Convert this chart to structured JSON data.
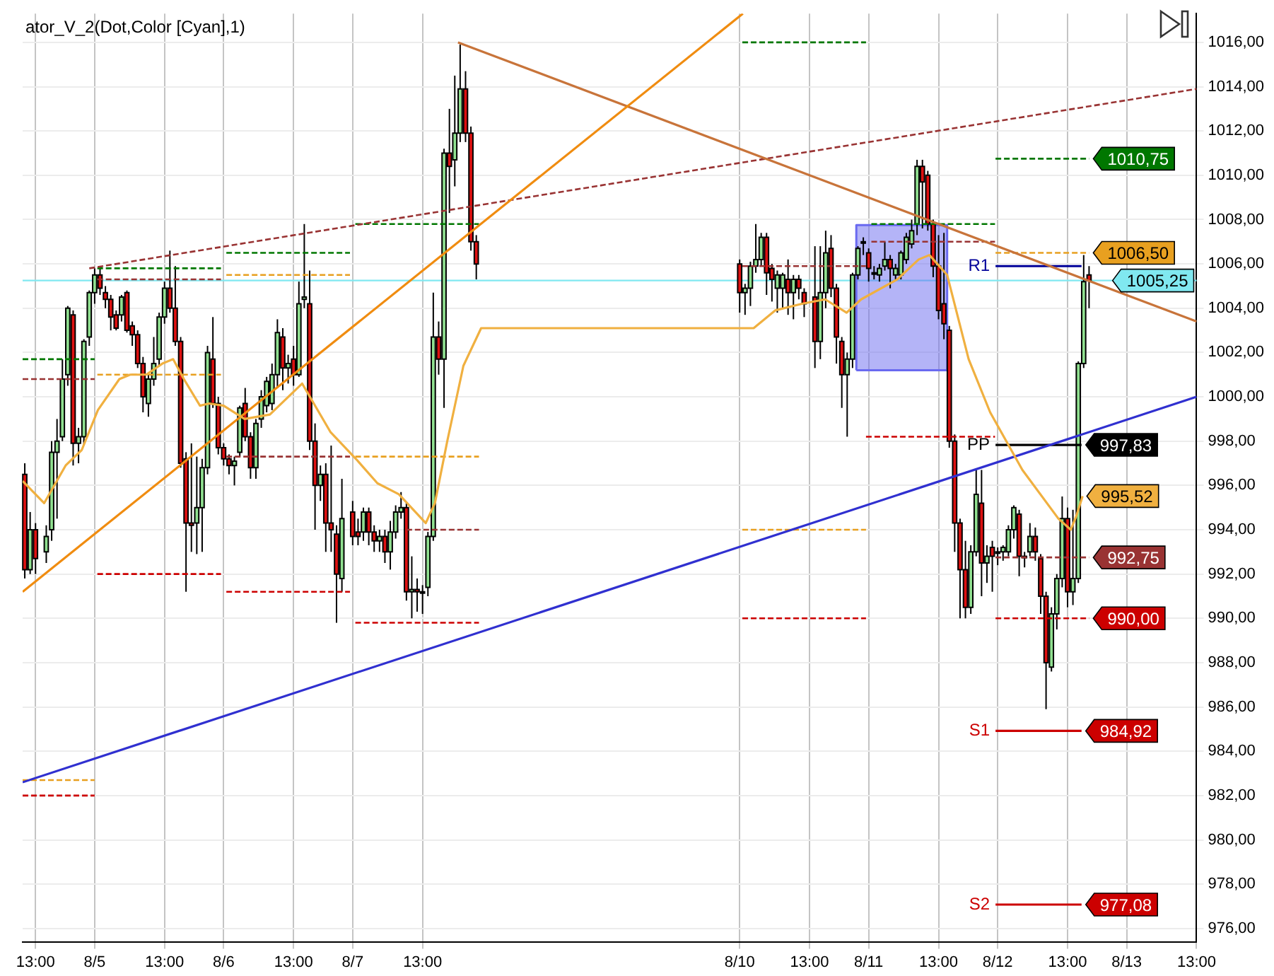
{
  "chart_data": {
    "type": "candlestick",
    "title": "ator_V_2(Dot,Color [Cyan],1)",
    "x": [
      "--08-04T11:00",
      "--08-04T12:00",
      "--08-04T13:00",
      "--08-04T15:00",
      "--08-04T16:00",
      "--08-04T17:00",
      "--08-04T18:00",
      "--08-04T19:00",
      "--08-04T20:00",
      "--08-04T21:00",
      "--08-04T22:00",
      "--08-04T23:00",
      "--08-05T00:00",
      "--08-05T01:00",
      "--08-05T02:00",
      "--08-05T03:00",
      "--08-05T04:00",
      "--08-05T05:00",
      "--08-05T06:00",
      "--08-05T07:00",
      "--08-05T08:00",
      "--08-05T09:00",
      "--08-05T10:00",
      "--08-05T11:00",
      "--08-05T12:00",
      "--08-05T13:00",
      "--08-05T14:00",
      "--08-05T15:00",
      "--08-05T16:00",
      "--08-05T17:00",
      "--08-05T18:00",
      "--08-05T19:00",
      "--08-05T20:00",
      "--08-05T21:00",
      "--08-05T22:00",
      "--08-05T23:00",
      "--08-06T00:00",
      "--08-06T01:00",
      "--08-06T02:00",
      "--08-06T03:00",
      "--08-06T04:00",
      "--08-06T05:00",
      "--08-06T06:00",
      "--08-06T07:00",
      "--08-06T08:00",
      "--08-06T09:00",
      "--08-06T10:00",
      "--08-06T11:00",
      "--08-06T12:00",
      "--08-06T13:00",
      "--08-06T14:00",
      "--08-06T15:00",
      "--08-06T16:00",
      "--08-06T17:00",
      "--08-06T18:00",
      "--08-06T19:00",
      "--08-06T20:00",
      "--08-06T21:00",
      "--08-06T22:00",
      "--08-07T00:00",
      "--08-07T01:00",
      "--08-07T02:00",
      "--08-07T03:00",
      "--08-07T04:00",
      "--08-07T05:00",
      "--08-07T06:00",
      "--08-07T07:00",
      "--08-07T08:00",
      "--08-07T09:00",
      "--08-07T10:00",
      "--08-07T11:00",
      "--08-07T12:00",
      "--08-07T13:00",
      "--08-07T14:00",
      "--08-07T15:00",
      "--08-07T16:00",
      "--08-07T17:00",
      "--08-07T18:00",
      "--08-07T19:00",
      "--08-07T20:00",
      "--08-07T21:00",
      "--08-07T22:00",
      "--08-07T23:00",
      "--08-10T00:00",
      "--08-10T01:00",
      "--08-10T02:00",
      "--08-10T03:00",
      "--08-10T04:00",
      "--08-10T05:00",
      "--08-10T06:00",
      "--08-10T07:00",
      "--08-10T08:00",
      "--08-10T09:00",
      "--08-10T10:00",
      "--08-10T11:00",
      "--08-10T12:00",
      "--08-10T14:00",
      "--08-10T15:00",
      "--08-10T16:00",
      "--08-10T17:00",
      "--08-10T18:00",
      "--08-10T19:00",
      "--08-10T20:00",
      "--08-10T21:00",
      "--08-10T22:00",
      "--08-10T23:00",
      "--08-11T00:00",
      "--08-11T01:00",
      "--08-11T02:00",
      "--08-11T03:00",
      "--08-11T04:00",
      "--08-11T05:00",
      "--08-11T06:00",
      "--08-11T07:00",
      "--08-11T08:00",
      "--08-11T09:00",
      "--08-11T10:00",
      "--08-11T11:00",
      "--08-11T12:00",
      "--08-11T13:00",
      "--08-11T14:00",
      "--08-11T15:00",
      "--08-11T16:00",
      "--08-11T17:00",
      "--08-11T18:00",
      "--08-11T19:00",
      "--08-11T20:00",
      "--08-11T21:00",
      "--08-11T22:00",
      "--08-11T23:00",
      "--08-12T00:00",
      "--08-12T01:00",
      "--08-12T02:00",
      "--08-12T03:00",
      "--08-12T04:00",
      "--08-12T05:00",
      "--08-12T06:00",
      "--08-12T07:00",
      "--08-12T08:00",
      "--08-12T09:00",
      "--08-12T10:00",
      "--08-12T11:00",
      "--08-12T12:00",
      "--08-12T13:00",
      "--08-12T14:00",
      "--08-12T15:00",
      "--08-12T16:00",
      "--08-12T17:00"
    ],
    "ohlc": [
      [
        996.5,
        997.0,
        991.8,
        992.2
      ],
      [
        992.2,
        994.8,
        992.0,
        994.0
      ],
      [
        994.0,
        994.3,
        992.0,
        992.7
      ],
      [
        993.0,
        994.2,
        992.5,
        993.7
      ],
      [
        994.0,
        998.0,
        993.5,
        997.5
      ],
      [
        997.5,
        999.0,
        994.5,
        998.0
      ],
      [
        998.2,
        1001.7,
        998.0,
        1000.8
      ],
      [
        1001.0,
        1004.1,
        1000.5,
        1004.0
      ],
      [
        1003.7,
        1003.9,
        996.9,
        997.9
      ],
      [
        997.9,
        998.6,
        997.0,
        998.2
      ],
      [
        998.2,
        1002.6,
        997.8,
        1002.5
      ],
      [
        1002.7,
        1004.8,
        1002.3,
        1004.7
      ],
      [
        1004.7,
        1005.8,
        1004.2,
        1005.5
      ],
      [
        1005.5,
        1005.8,
        1004.6,
        1004.9
      ],
      [
        1004.7,
        1005.0,
        1004.0,
        1004.4
      ],
      [
        1004.4,
        1004.6,
        1003.0,
        1003.6
      ],
      [
        1003.7,
        1003.9,
        1003.0,
        1003.1
      ],
      [
        1003.7,
        1004.6,
        1003.4,
        1004.5
      ],
      [
        1004.7,
        1004.8,
        1002.9,
        1003.0
      ],
      [
        1003.2,
        1003.4,
        1002.3,
        1002.8
      ],
      [
        1002.8,
        1003.0,
        1001.3,
        1001.5
      ],
      [
        1001.5,
        1001.8,
        999.3,
        1000.0
      ],
      [
        999.7,
        1001.0,
        999.1,
        1000.8
      ],
      [
        1000.8,
        1002.7,
        1000.5,
        1001.5
      ],
      [
        1001.7,
        1003.8,
        1001.4,
        1003.6
      ],
      [
        1003.6,
        1005.2,
        1003.3,
        1004.9
      ],
      [
        1004.9,
        1006.6,
        1003.8,
        1004.0
      ],
      [
        1004.0,
        1005.9,
        1002.3,
        1002.5
      ],
      [
        1002.5,
        1002.7,
        996.8,
        997.0
      ],
      [
        997.2,
        997.5,
        991.2,
        994.3
      ],
      [
        994.3,
        997.9,
        993.0,
        994.2
      ],
      [
        994.3,
        997.3,
        992.9,
        995.0
      ],
      [
        995.0,
        997.2,
        993.0,
        996.8
      ],
      [
        996.8,
        1002.3,
        996.5,
        1002.0
      ],
      [
        1001.7,
        1003.6,
        999.5,
        999.7
      ],
      [
        999.7,
        1000.0,
        997.4,
        997.7
      ],
      [
        997.7,
        997.9,
        996.9,
        997.2
      ],
      [
        997.2,
        997.4,
        996.5,
        996.9
      ],
      [
        996.9,
        997.3,
        996.0,
        997.1
      ],
      [
        997.5,
        999.6,
        997.3,
        999.5
      ],
      [
        999.7,
        1000.4,
        998.0,
        998.2
      ],
      [
        998.2,
        998.4,
        996.3,
        996.8
      ],
      [
        996.8,
        999.0,
        996.3,
        998.8
      ],
      [
        999.0,
        1000.3,
        998.6,
        1000.0
      ],
      [
        999.6,
        1000.9,
        999.3,
        1000.7
      ],
      [
        999.7,
        1001.5,
        999.4,
        1001.0
      ],
      [
        1001.0,
        1003.5,
        1000.4,
        1002.9
      ],
      [
        1002.7,
        1003.1,
        1000.3,
        1001.3
      ],
      [
        1001.3,
        1001.9,
        1000.6,
        1001.5
      ],
      [
        1001.7,
        1002.3,
        1000.5,
        1001.0
      ],
      [
        1001.0,
        1005.2,
        1000.9,
        1004.2
      ],
      [
        1004.4,
        1007.8,
        1004.0,
        1004.5
      ],
      [
        1004.2,
        1005.7,
        997.6,
        998.0
      ],
      [
        998.0,
        998.8,
        994.0,
        996.0
      ],
      [
        996.0,
        996.9,
        995.3,
        996.5
      ],
      [
        996.5,
        997.0,
        993.0,
        994.3
      ],
      [
        994.3,
        997.8,
        993.0,
        994.0
      ],
      [
        993.8,
        994.2,
        989.8,
        992.0
      ],
      [
        991.8,
        996.3,
        991.2,
        994.5
      ],
      [
        994.8,
        995.3,
        993.3,
        993.7
      ],
      [
        993.9,
        994.5,
        993.3,
        993.7
      ],
      [
        993.9,
        995.0,
        993.5,
        994.8
      ],
      [
        994.8,
        995.0,
        993.3,
        993.9
      ],
      [
        993.9,
        994.2,
        993.0,
        993.5
      ],
      [
        993.5,
        994.0,
        993.0,
        993.7
      ],
      [
        993.7,
        994.0,
        992.5,
        993.0
      ],
      [
        993.0,
        994.4,
        992.2,
        993.9
      ],
      [
        993.9,
        995.1,
        993.6,
        994.8
      ],
      [
        994.8,
        995.7,
        994.5,
        995.0
      ],
      [
        995.0,
        995.2,
        990.8,
        991.2
      ],
      [
        991.2,
        992.8,
        990.0,
        991.3
      ],
      [
        991.3,
        991.8,
        990.3,
        991.2
      ],
      [
        991.2,
        991.5,
        990.2,
        991.2
      ],
      [
        991.4,
        993.9,
        991.0,
        993.7
      ],
      [
        993.7,
        1004.7,
        993.5,
        1002.7
      ],
      [
        1002.7,
        1003.4,
        1001.0,
        1001.7
      ],
      [
        1001.7,
        1011.2,
        999.5,
        1011.0
      ],
      [
        1011.0,
        1013.0,
        1008.3,
        1010.4
      ],
      [
        1010.7,
        1014.5,
        1009.5,
        1011.9
      ],
      [
        1011.9,
        1015.9,
        1011.5,
        1013.9
      ],
      [
        1013.9,
        1014.7,
        1011.5,
        1011.9
      ],
      [
        1011.9,
        1012.2,
        1006.6,
        1007.0
      ],
      [
        1007.0,
        1007.3,
        1005.3,
        1006.0
      ],
      [
        1006.0,
        1006.2,
        1003.8,
        1004.7
      ],
      [
        1004.7,
        1005.1,
        1003.7,
        1004.9
      ],
      [
        1004.9,
        1006.1,
        1004.1,
        1005.9
      ],
      [
        1005.9,
        1007.8,
        1005.6,
        1006.2
      ],
      [
        1006.2,
        1007.4,
        1005.9,
        1007.2
      ],
      [
        1007.2,
        1007.4,
        1004.6,
        1005.6
      ],
      [
        1005.8,
        1006.0,
        1004.3,
        1005.3
      ],
      [
        1004.9,
        1005.7,
        1003.8,
        1005.5
      ],
      [
        1004.9,
        1005.6,
        1004.0,
        1005.5
      ],
      [
        1005.3,
        1006.2,
        1003.7,
        1004.7
      ],
      [
        1004.7,
        1005.5,
        1003.5,
        1005.3
      ],
      [
        1005.3,
        1005.5,
        1004.4,
        1004.9
      ],
      [
        1004.7,
        1004.9,
        1003.6,
        1004.2
      ],
      [
        1004.5,
        1006.8,
        1001.3,
        1002.5
      ],
      [
        1002.5,
        1006.8,
        1001.7,
        1004.7
      ],
      [
        1004.7,
        1007.5,
        1004.0,
        1006.5
      ],
      [
        1006.7,
        1007.3,
        1004.5,
        1004.9
      ],
      [
        1004.9,
        1005.1,
        1001.5,
        1002.7
      ],
      [
        1002.5,
        1002.7,
        999.5,
        1001.0
      ],
      [
        1001.0,
        1002.0,
        998.2,
        1001.7
      ],
      [
        1001.7,
        1005.6,
        1001.3,
        1005.5
      ],
      [
        1005.5,
        1006.8,
        1005.3,
        1006.7
      ],
      [
        1007.0,
        1007.2,
        1006.4,
        1007.0
      ],
      [
        1006.5,
        1006.7,
        1005.2,
        1005.8
      ],
      [
        1005.6,
        1005.9,
        1005.3,
        1005.6
      ],
      [
        1005.5,
        1006.0,
        1005.2,
        1005.8
      ],
      [
        1005.9,
        1007.0,
        1005.7,
        1006.2
      ],
      [
        1006.2,
        1006.4,
        1004.9,
        1005.8
      ],
      [
        1005.5,
        1006.0,
        1005.3,
        1005.8
      ],
      [
        1005.5,
        1006.6,
        1005.3,
        1006.5
      ],
      [
        1006.2,
        1007.4,
        1006.0,
        1007.2
      ],
      [
        1006.9,
        1008.0,
        1006.7,
        1007.5
      ],
      [
        1007.8,
        1010.7,
        1007.3,
        1010.4
      ],
      [
        1010.4,
        1010.7,
        1007.6,
        1009.7
      ],
      [
        1010.0,
        1010.2,
        1007.5,
        1007.8
      ],
      [
        1007.8,
        1008.0,
        1005.4,
        1005.9
      ],
      [
        1005.9,
        1007.3,
        1003.5,
        1003.9
      ],
      [
        1004.2,
        1007.4,
        1002.6,
        1003.3
      ],
      [
        1003.0,
        1003.2,
        997.7,
        998.0
      ],
      [
        998.0,
        998.3,
        993.0,
        994.3
      ],
      [
        994.3,
        994.5,
        990.0,
        992.2
      ],
      [
        992.2,
        993.5,
        990.0,
        990.5
      ],
      [
        990.5,
        993.3,
        990.2,
        993.0
      ],
      [
        993.0,
        996.7,
        992.8,
        995.6
      ],
      [
        995.2,
        996.7,
        991.0,
        992.5
      ],
      [
        992.5,
        993.3,
        991.6,
        992.8
      ],
      [
        993.2,
        993.5,
        991.2,
        992.8
      ],
      [
        993.0,
        993.2,
        992.4,
        993.0
      ],
      [
        993.0,
        993.3,
        992.6,
        993.2
      ],
      [
        993.0,
        994.2,
        992.8,
        994.0
      ],
      [
        994.0,
        995.1,
        993.6,
        995.0
      ],
      [
        994.7,
        994.9,
        991.9,
        992.8
      ],
      [
        992.8,
        993.0,
        992.3,
        992.8
      ],
      [
        993.0,
        994.3,
        992.8,
        993.7
      ],
      [
        993.7,
        994.1,
        992.6,
        993.0
      ],
      [
        992.7,
        992.9,
        990.2,
        991.0
      ],
      [
        991.0,
        991.2,
        985.9,
        988.0
      ],
      [
        987.8,
        990.5,
        987.6,
        990.2
      ],
      [
        990.2,
        992.0,
        989.5,
        991.8
      ],
      [
        991.8,
        995.5,
        991.4,
        994.5
      ],
      [
        994.5,
        995.0,
        990.5,
        991.2
      ],
      [
        991.2,
        994.9,
        990.6,
        991.8
      ],
      [
        991.8,
        1001.6,
        991.6,
        1001.5
      ],
      [
        1001.5,
        1006.4,
        1001.3,
        1005.2
      ],
      [
        1005.5,
        1005.9,
        1004.0,
        1005.25
      ]
    ],
    "colors": [
      "#dd1111",
      "#90e090",
      "#dd1111",
      "#90e090",
      "#90e090",
      "#90e090",
      "#90e090",
      "#90e090",
      "#dd1111",
      "#90e090",
      "#90e090",
      "#90e090",
      "#90e090",
      "#dd1111",
      "#dd1111",
      "#dd1111",
      "#dd1111",
      "#90e090",
      "#dd1111",
      "#dd1111",
      "#dd1111",
      "#dd1111",
      "#90e090",
      "#90e090",
      "#90e090",
      "#90e090",
      "#dd1111",
      "#dd1111",
      "#dd1111",
      "#dd1111",
      "#dd1111",
      "#90e090",
      "#90e090",
      "#90e090",
      "#dd1111",
      "#dd1111",
      "#dd1111",
      "#dd1111",
      "#90e090",
      "#90e090",
      "#dd1111",
      "#dd1111",
      "#90e090",
      "#90e090",
      "#90e090",
      "#90e090",
      "#90e090",
      "#dd1111",
      "#90e090",
      "#dd1111",
      "#90e090",
      "#90e090",
      "#dd1111",
      "#dd1111",
      "#90e090",
      "#dd1111",
      "#dd1111",
      "#dd1111",
      "#90e090",
      "#dd1111",
      "#dd1111",
      "#90e090",
      "#dd1111",
      "#dd1111",
      "#90e090",
      "#dd1111",
      "#90e090",
      "#90e090",
      "#90e090",
      "#dd1111",
      "#90e090",
      "#dd1111",
      "#90e090",
      "#90e090",
      "#90e090",
      "#dd1111",
      "#90e090",
      "#dd1111",
      "#90e090",
      "#90e090",
      "#dd1111",
      "#dd1111",
      "#dd1111",
      "#dd1111",
      "#90e090",
      "#90e090",
      "#90e090",
      "#90e090",
      "#dd1111",
      "#dd1111",
      "#90e090",
      "#90e090",
      "#dd1111",
      "#90e090",
      "#dd1111",
      "#dd1111",
      "#dd1111",
      "#90e090",
      "#90e090",
      "#dd1111",
      "#dd1111",
      "#dd1111",
      "#90e090",
      "#90e090",
      "#90e090",
      "#90e090",
      "#dd1111",
      "#90e090",
      "#90e090",
      "#90e090",
      "#dd1111",
      "#90e090",
      "#90e090",
      "#90e090",
      "#90e090",
      "#90e090",
      "#dd1111",
      "#dd1111",
      "#dd1111",
      "#dd1111",
      "#dd1111",
      "#dd1111",
      "#dd1111",
      "#dd1111",
      "#dd1111",
      "#90e090",
      "#90e090",
      "#dd1111",
      "#90e090",
      "#dd1111",
      "#90e090",
      "#90e090",
      "#90e090",
      "#90e090",
      "#dd1111",
      "#90e090",
      "#90e090",
      "#dd1111",
      "#dd1111",
      "#dd1111",
      "#90e090",
      "#90e090",
      "#90e090",
      "#dd1111",
      "#90e090",
      "#90e090",
      "#90e090",
      "#dd1111"
    ],
    "xlim": [
      "--08-04T10:36",
      "--08-13T13:00"
    ],
    "xticks": [
      {
        "value": "--08-04T13:00",
        "label": "13:00"
      },
      {
        "value": "--08-05",
        "label": "8/5"
      },
      {
        "value": "--08-05T13:00",
        "label": "13:00"
      },
      {
        "value": "--08-06",
        "label": "8/6"
      },
      {
        "value": "--08-06T13:00",
        "label": "13:00"
      },
      {
        "value": "--08-07",
        "label": "8/7"
      },
      {
        "value": "--08-07T13:00",
        "label": "13:00"
      },
      {
        "value": "--08-10",
        "label": "8/10"
      },
      {
        "value": "--08-10T13:00",
        "label": "13:00"
      },
      {
        "value": "--08-11",
        "label": "8/11"
      },
      {
        "value": "--08-11T13:00",
        "label": "13:00"
      },
      {
        "value": "--08-12",
        "label": "8/12"
      },
      {
        "value": "--08-12T13:00",
        "label": "13:00"
      },
      {
        "value": "--08-13",
        "label": "8/13"
      },
      {
        "value": "--08-13T13:00",
        "label": "13:00"
      }
    ],
    "ylim": [
      975.4,
      1017.3
    ],
    "yticks": [
      {
        "value": 976,
        "label": "976,00"
      },
      {
        "value": 978,
        "label": "978,00"
      },
      {
        "value": 980,
        "label": "980,00"
      },
      {
        "value": 982,
        "label": "982,00"
      },
      {
        "value": 984,
        "label": "984,00"
      },
      {
        "value": 986,
        "label": "986,00"
      },
      {
        "value": 988,
        "label": "988,00"
      },
      {
        "value": 990,
        "label": "990,00"
      },
      {
        "value": 992,
        "label": "992,00"
      },
      {
        "value": 994,
        "label": "994,00"
      },
      {
        "value": 996,
        "label": "996,00"
      },
      {
        "value": 998,
        "label": "998,00"
      },
      {
        "value": 1000,
        "label": "1000,00"
      },
      {
        "value": 1002,
        "label": "1002,00"
      },
      {
        "value": 1004,
        "label": "1004,00"
      },
      {
        "value": 1006,
        "label": "1006,00"
      },
      {
        "value": 1008,
        "label": "1008,00"
      },
      {
        "value": 1010,
        "label": "1010,00"
      },
      {
        "value": 1012,
        "label": "1012,00"
      },
      {
        "value": 1014,
        "label": "1014,00"
      },
      {
        "value": 1016,
        "label": "1016,00"
      }
    ],
    "grid": true,
    "ref_lines": [
      {
        "axis": "y",
        "value": 1005.25,
        "label": "1005,25",
        "color": "#80e8f0"
      }
    ],
    "series": [
      {
        "type": "area",
        "color": "#6a6af0",
        "x": [
          "--08-10T21:42",
          "--08-10T21:42",
          "--08-11T14:36",
          "--08-11T14:36",
          "--08-10T21:42"
        ],
        "values": [
          1001.2,
          1007.75,
          1007.75,
          1001.2,
          1001.2
        ]
      },
      {
        "type": "line",
        "color": "#f0b040",
        "x": [
          "--08-04T10:36",
          "--08-04T14:36",
          "--08-04T18:36",
          "--08-04T21:36",
          "--08-05T00:36",
          "--08-05T04:36",
          "--08-05T06:36",
          "--08-05T09:36",
          "--08-05T12:36",
          "--08-05T14:36",
          "--08-05T16:36",
          "--08-05T19:36",
          "--08-05T21:18",
          "--08-06T00:00",
          "--08-06T03:54",
          "--08-06T08:36",
          "--08-06T14:36",
          "--08-06T19:54",
          "--08-07T00:36",
          "--08-07T04:36",
          "--08-07T08:36",
          "--08-07T13:36",
          "--08-07T15:18",
          "--08-07T17:36",
          "--08-07T20:36",
          "--08-07T23:54",
          "--08-10T02:36",
          "--08-10T06:36",
          "--08-10T11:36",
          "--08-10T15:54",
          "--08-10T19:54",
          "--08-10T22:36",
          "--08-11T05:18",
          "--08-11T09:18",
          "--08-11T11:18",
          "--08-11T14:36",
          "--08-11T18:36",
          "--08-11T22:36",
          "--08-12T04:36",
          "--08-12T11:18",
          "--08-12T13:36",
          "--08-12T14:36",
          "--08-12T15:48"
        ],
        "values": [
          996.2,
          995.2,
          996.9,
          997.6,
          999.4,
          1000.8,
          1001.0,
          1001.0,
          1001.5,
          1001.7,
          1000.8,
          999.6,
          999.7,
          999.6,
          999.0,
          999.2,
          1000.6,
          998.4,
          997.2,
          996.1,
          995.6,
          994.3,
          995.2,
          998.0,
          1001.4,
          1003.1,
          1003.1,
          1003.9,
          1004.2,
          1004.4,
          1003.8,
          1004.4,
          1005.3,
          1006.2,
          1006.4,
          1005.5,
          1001.7,
          999.3,
          996.7,
          994.5,
          994.0,
          994.6,
          995.52
        ],
        "value_labels": [
          null,
          null,
          null,
          null,
          null,
          null,
          null,
          null,
          null,
          null,
          null,
          null,
          null,
          null,
          null,
          null,
          null,
          null,
          null,
          null,
          null,
          null,
          null,
          null,
          null,
          null,
          null,
          null,
          null,
          null,
          null,
          null,
          null,
          null,
          null,
          null,
          null,
          null,
          null,
          null,
          null,
          null,
          "995,52"
        ]
      },
      {
        "type": "line",
        "color": "#f08c10",
        "x": [
          "--08-04T10:36",
          "--08-10T00:36"
        ],
        "values": [
          991.2,
          1017.3
        ]
      },
      {
        "type": "line",
        "color": "#c8743a",
        "x": [
          "--08-07T19:36",
          "--08-13T13:00"
        ],
        "values": [
          1016.0,
          1003.4
        ]
      },
      {
        "type": "line",
        "color": "#3030d0",
        "x": [
          "--08-04T10:36",
          "--08-13T13:00"
        ],
        "values": [
          982.6,
          1000.0
        ]
      },
      {
        "type": "line",
        "color": "#993333",
        "line_style": "dashed",
        "x": [
          "--08-04T23:00",
          "--08-13T13:00"
        ],
        "values": [
          1005.8,
          1013.9
        ]
      },
      {
        "type": "line",
        "color": "#007700",
        "line_style": "dashed",
        "x": [
          "--08-04T10:36",
          "--08-05T00:00"
        ],
        "values": [
          1001.7,
          1001.7
        ]
      },
      {
        "type": "line",
        "color": "#993333",
        "line_style": "dashed",
        "x": [
          "--08-04T10:36",
          "--08-05T00:00"
        ],
        "values": [
          1000.8,
          1000.8
        ]
      },
      {
        "type": "line",
        "color": "#e8a020",
        "line_style": "dashed",
        "x": [
          "--08-04T10:36",
          "--08-05T00:00"
        ],
        "values": [
          982.7,
          982.7
        ]
      },
      {
        "type": "line",
        "color": "#cc0000",
        "line_style": "dashed",
        "x": [
          "--08-04T10:36",
          "--08-05T00:00"
        ],
        "values": [
          982.0,
          982.0
        ]
      },
      {
        "type": "line",
        "color": "#007700",
        "line_style": "dashed",
        "x": [
          "--08-05T00:30",
          "--08-05T23:30"
        ],
        "values": [
          1005.8,
          1005.8
        ]
      },
      {
        "type": "line",
        "color": "#993333",
        "line_style": "dashed",
        "x": [
          "--08-05T00:30",
          "--08-05T23:30"
        ],
        "values": [
          1005.3,
          1005.3
        ]
      },
      {
        "type": "line",
        "color": "#e8a020",
        "line_style": "dashed",
        "x": [
          "--08-05T00:30",
          "--08-05T23:30"
        ],
        "values": [
          1001.0,
          1001.0
        ]
      },
      {
        "type": "line",
        "color": "#cc0000",
        "line_style": "dashed",
        "x": [
          "--08-05T00:30",
          "--08-05T23:30"
        ],
        "values": [
          992.0,
          992.0
        ]
      },
      {
        "type": "line",
        "color": "#007700",
        "line_style": "dashed",
        "x": [
          "--08-06T00:30",
          "--08-06T23:30"
        ],
        "values": [
          1006.5,
          1006.5
        ]
      },
      {
        "type": "line",
        "color": "#e8a020",
        "line_style": "dashed",
        "x": [
          "--08-06T00:30",
          "--08-06T23:30"
        ],
        "values": [
          1005.5,
          1005.5
        ]
      },
      {
        "type": "line",
        "color": "#993333",
        "line_style": "dashed",
        "x": [
          "--08-06T00:30",
          "--08-06T23:30"
        ],
        "values": [
          997.3,
          997.3
        ]
      },
      {
        "type": "line",
        "color": "#cc0000",
        "line_style": "dashed",
        "x": [
          "--08-06T00:30",
          "--08-06T23:30"
        ],
        "values": [
          991.2,
          991.2
        ]
      },
      {
        "type": "line",
        "color": "#007700",
        "line_style": "dashed",
        "x": [
          "--08-07T00:30",
          "--08-07T23:30"
        ],
        "values": [
          1007.8,
          1007.8
        ]
      },
      {
        "type": "line",
        "color": "#e8a020",
        "line_style": "dashed",
        "x": [
          "--08-07T00:30",
          "--08-07T23:30"
        ],
        "values": [
          997.3,
          997.3
        ]
      },
      {
        "type": "line",
        "color": "#993333",
        "line_style": "dashed",
        "x": [
          "--08-07T10:00",
          "--08-07T23:30"
        ],
        "values": [
          994.0,
          994.0
        ]
      },
      {
        "type": "line",
        "color": "#cc0000",
        "line_style": "dashed",
        "x": [
          "--08-07T00:30",
          "--08-07T23:30"
        ],
        "values": [
          989.8,
          989.8
        ]
      },
      {
        "type": "line",
        "color": "#007700",
        "line_style": "dashed",
        "x": [
          "--08-10T00:30",
          "--08-10T23:30"
        ],
        "values": [
          1016.0,
          1016.0
        ]
      },
      {
        "type": "line",
        "color": "#993333",
        "line_style": "dashed",
        "x": [
          "--08-10T00:30",
          "--08-10T23:30"
        ],
        "values": [
          1005.9,
          1005.9
        ]
      },
      {
        "type": "line",
        "color": "#e8a020",
        "line_style": "dashed",
        "x": [
          "--08-10T00:30",
          "--08-10T23:30"
        ],
        "values": [
          994.0,
          994.0
        ]
      },
      {
        "type": "line",
        "color": "#cc0000",
        "line_style": "dashed",
        "x": [
          "--08-10T00:30",
          "--08-10T23:30"
        ],
        "values": [
          990.0,
          990.0
        ]
      },
      {
        "type": "line",
        "color": "#007700",
        "line_style": "dashed",
        "x": [
          "--08-11T00:30",
          "--08-11T23:30"
        ],
        "values": [
          1007.8,
          1007.8
        ]
      },
      {
        "type": "line",
        "color": "#993333",
        "line_style": "dashed",
        "x": [
          "--08-11T00:30",
          "--08-11T23:30"
        ],
        "values": [
          1007.0,
          1007.0
        ]
      },
      {
        "type": "line",
        "color": "#cc0000",
        "line_style": "dashed",
        "x": [
          "--08-10T23:30",
          "--08-11T23:30"
        ],
        "values": [
          998.2,
          998.2
        ]
      },
      {
        "type": "line",
        "color": "#007700",
        "line_style": "dashed",
        "x": [
          "--08-11T23:36",
          "--08-12T17:00"
        ],
        "values": [
          1010.75,
          1010.75
        ],
        "value_labels": [
          null,
          "1010,75"
        ]
      },
      {
        "type": "line",
        "color": "#e8a020",
        "line_style": "dashed",
        "x": [
          "--08-11T23:36",
          "--08-12T17:00"
        ],
        "values": [
          1006.5,
          1006.5
        ],
        "value_labels": [
          null,
          "1006,50"
        ]
      },
      {
        "type": "line",
        "color": "#993333",
        "line_style": "dashed",
        "x": [
          "--08-11T23:36",
          "--08-12T17:00"
        ],
        "values": [
          992.75,
          992.75
        ],
        "value_labels": [
          null,
          "992,75"
        ]
      },
      {
        "type": "line",
        "color": "#cc0000",
        "line_style": "dashed",
        "x": [
          "--08-11T23:36",
          "--08-12T17:00"
        ],
        "values": [
          990.0,
          990.0
        ],
        "value_labels": [
          null,
          "990,00"
        ]
      },
      {
        "type": "line",
        "name": "R1",
        "color": "#000099",
        "x": [
          "--08-11T23:36",
          "--08-12T15:36"
        ],
        "values": [
          1005.9,
          1005.9
        ]
      },
      {
        "type": "line",
        "name": "PP",
        "color": "#000000",
        "x": [
          "--08-11T23:36",
          "--08-12T15:36"
        ],
        "values": [
          997.83,
          997.83
        ],
        "value_labels": [
          null,
          "997,83"
        ]
      },
      {
        "type": "line",
        "name": "S1",
        "color": "#cc0000",
        "x": [
          "--08-11T23:36",
          "--08-12T15:36"
        ],
        "values": [
          984.92,
          984.92
        ],
        "value_labels": [
          null,
          "984,92"
        ]
      },
      {
        "type": "line",
        "name": "S2",
        "color": "#cc0000",
        "x": [
          "--08-11T23:36",
          "--08-12T15:36"
        ],
        "values": [
          977.08,
          977.08
        ],
        "value_labels": [
          null,
          "977,08"
        ]
      }
    ]
  }
}
